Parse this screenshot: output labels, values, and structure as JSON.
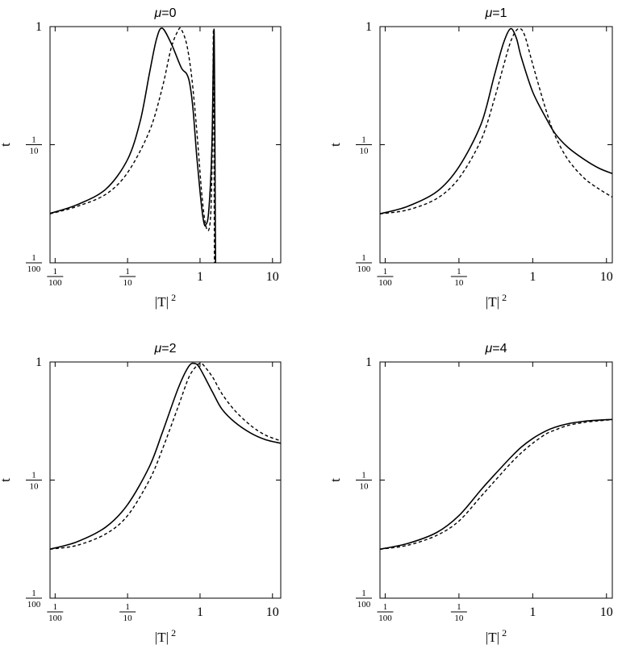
{
  "chart_data": [
    {
      "type": "line",
      "title": {
        "symbol": "μ",
        "rest": "=0"
      },
      "xlabel": {
        "base": "|T|",
        "sup": "2"
      },
      "ylabel": "t",
      "xscale": "log",
      "yscale": "log",
      "xlim": [
        0.0085,
        13
      ],
      "ylim": [
        0.01,
        1
      ],
      "xticks": [
        {
          "value": 0.01,
          "num": "1",
          "den": "100"
        },
        {
          "value": 0.1,
          "num": "1",
          "den": "10"
        },
        {
          "value": 1,
          "label": "1"
        },
        {
          "value": 10,
          "label": "10"
        }
      ],
      "yticks": [
        {
          "value": 0.01,
          "num": "1",
          "den": "100"
        },
        {
          "value": 0.1,
          "num": "1",
          "den": "10"
        },
        {
          "value": 1,
          "label": "1"
        }
      ],
      "grid": false,
      "series": [
        {
          "style": "solid",
          "x": [
            0.0085,
            0.02,
            0.05,
            0.1,
            0.15,
            0.2,
            0.25,
            0.3,
            0.4,
            0.55,
            0.65,
            0.72,
            0.8,
            0.9,
            1.0,
            1.08,
            1.15,
            1.2,
            1.3,
            1.42,
            1.48,
            1.52,
            1.56,
            1.58,
            1.6,
            1.62,
            1.64
          ],
          "y": [
            0.0262,
            0.031,
            0.042,
            0.075,
            0.16,
            0.4,
            0.78,
            0.97,
            0.72,
            0.45,
            0.4,
            0.33,
            0.2,
            0.08,
            0.04,
            0.026,
            0.021,
            0.021,
            0.025,
            0.06,
            0.15,
            0.45,
            0.95,
            0.5,
            0.15,
            0.03,
            0.0095
          ]
        },
        {
          "style": "dashed",
          "x": [
            0.0085,
            0.02,
            0.05,
            0.1,
            0.2,
            0.3,
            0.4,
            0.5,
            0.55,
            0.65,
            0.75,
            0.85,
            0.95,
            1.05,
            1.15,
            1.25,
            1.35,
            1.42,
            1.48,
            1.51,
            1.53,
            1.545,
            1.56,
            1.58
          ],
          "y": [
            0.026,
            0.03,
            0.038,
            0.058,
            0.13,
            0.3,
            0.66,
            0.93,
            0.95,
            0.72,
            0.42,
            0.2,
            0.088,
            0.04,
            0.024,
            0.019,
            0.02,
            0.03,
            0.1,
            0.4,
            0.95,
            0.4,
            0.08,
            0.0095
          ]
        }
      ]
    },
    {
      "type": "line",
      "title": {
        "symbol": "μ",
        "rest": "=1"
      },
      "xlabel": {
        "base": "|T|",
        "sup": "2"
      },
      "ylabel": "t",
      "xscale": "log",
      "yscale": "log",
      "xlim": [
        0.0085,
        12
      ],
      "ylim": [
        0.01,
        1
      ],
      "xticks": [
        {
          "value": 0.01,
          "num": "1",
          "den": "100"
        },
        {
          "value": 0.1,
          "num": "1",
          "den": "10"
        },
        {
          "value": 1,
          "label": "1"
        },
        {
          "value": 10,
          "label": "10"
        }
      ],
      "yticks": [
        {
          "value": 0.01,
          "num": "1",
          "den": "100"
        },
        {
          "value": 0.1,
          "num": "1",
          "den": "10"
        },
        {
          "value": 1,
          "label": "1"
        }
      ],
      "grid": false,
      "series": [
        {
          "style": "solid",
          "x": [
            0.0085,
            0.02,
            0.05,
            0.1,
            0.2,
            0.3,
            0.4,
            0.5,
            0.6,
            0.7,
            1.0,
            1.5,
            2,
            3,
            5,
            8,
            12
          ],
          "y": [
            0.026,
            0.03,
            0.04,
            0.065,
            0.15,
            0.38,
            0.72,
            0.96,
            0.8,
            0.55,
            0.28,
            0.17,
            0.125,
            0.095,
            0.075,
            0.063,
            0.057
          ]
        },
        {
          "style": "dashed",
          "x": [
            0.0085,
            0.02,
            0.05,
            0.1,
            0.2,
            0.3,
            0.4,
            0.5,
            0.6,
            0.7,
            0.8,
            1.0,
            1.5,
            2,
            3,
            5,
            8,
            12
          ],
          "y": [
            0.026,
            0.028,
            0.035,
            0.052,
            0.11,
            0.24,
            0.46,
            0.74,
            0.93,
            0.95,
            0.8,
            0.48,
            0.2,
            0.12,
            0.075,
            0.052,
            0.042,
            0.036
          ]
        }
      ]
    },
    {
      "type": "line",
      "title": {
        "symbol": "μ",
        "rest": "=2"
      },
      "xlabel": {
        "base": "|T|",
        "sup": "2"
      },
      "ylabel": "t",
      "xscale": "log",
      "yscale": "log",
      "xlim": [
        0.0085,
        13
      ],
      "ylim": [
        0.01,
        1
      ],
      "xticks": [
        {
          "value": 0.01,
          "num": "1",
          "den": "100"
        },
        {
          "value": 0.1,
          "num": "1",
          "den": "10"
        },
        {
          "value": 1,
          "label": "1"
        },
        {
          "value": 10,
          "label": "10"
        }
      ],
      "yticks": [
        {
          "value": 0.01,
          "num": "1",
          "den": "100"
        },
        {
          "value": 0.1,
          "num": "1",
          "den": "10"
        },
        {
          "value": 1,
          "label": "1"
        }
      ],
      "grid": false,
      "series": [
        {
          "style": "solid",
          "x": [
            0.0085,
            0.02,
            0.05,
            0.1,
            0.2,
            0.3,
            0.5,
            0.7,
            0.85,
            1.0,
            1.5,
            2,
            3,
            5,
            8,
            13
          ],
          "y": [
            0.026,
            0.03,
            0.04,
            0.062,
            0.13,
            0.25,
            0.6,
            0.92,
            0.97,
            0.88,
            0.55,
            0.4,
            0.31,
            0.25,
            0.22,
            0.205
          ]
        },
        {
          "style": "dashed",
          "x": [
            0.0085,
            0.02,
            0.05,
            0.1,
            0.2,
            0.3,
            0.5,
            0.7,
            0.9,
            1.0,
            1.1,
            1.5,
            2,
            3,
            5,
            8,
            13
          ],
          "y": [
            0.026,
            0.028,
            0.035,
            0.05,
            0.1,
            0.18,
            0.42,
            0.74,
            0.93,
            0.97,
            0.95,
            0.74,
            0.54,
            0.39,
            0.29,
            0.24,
            0.215
          ]
        }
      ]
    },
    {
      "type": "line",
      "title": {
        "symbol": "μ",
        "rest": "=4"
      },
      "xlabel": {
        "base": "|T|",
        "sup": "2"
      },
      "ylabel": "t",
      "xscale": "log",
      "yscale": "log",
      "xlim": [
        0.0085,
        12
      ],
      "ylim": [
        0.01,
        1
      ],
      "xticks": [
        {
          "value": 0.01,
          "num": "1",
          "den": "100"
        },
        {
          "value": 0.1,
          "num": "1",
          "den": "10"
        },
        {
          "value": 1,
          "label": "1"
        },
        {
          "value": 10,
          "label": "10"
        }
      ],
      "yticks": [
        {
          "value": 0.01,
          "num": "1",
          "den": "100"
        },
        {
          "value": 0.1,
          "num": "1",
          "den": "10"
        },
        {
          "value": 1,
          "label": "1"
        }
      ],
      "grid": false,
      "series": [
        {
          "style": "solid",
          "x": [
            0.0085,
            0.02,
            0.05,
            0.1,
            0.2,
            0.3,
            0.5,
            0.7,
            1.0,
            1.5,
            2,
            3,
            5,
            8,
            12
          ],
          "y": [
            0.026,
            0.029,
            0.036,
            0.05,
            0.083,
            0.11,
            0.155,
            0.19,
            0.225,
            0.26,
            0.28,
            0.3,
            0.315,
            0.322,
            0.326
          ]
        },
        {
          "style": "dashed",
          "x": [
            0.0085,
            0.02,
            0.05,
            0.1,
            0.2,
            0.3,
            0.5,
            0.7,
            1.0,
            1.5,
            2,
            3,
            5,
            8,
            12
          ],
          "y": [
            0.026,
            0.028,
            0.034,
            0.045,
            0.073,
            0.097,
            0.138,
            0.17,
            0.205,
            0.245,
            0.265,
            0.29,
            0.308,
            0.318,
            0.325
          ]
        }
      ]
    }
  ]
}
